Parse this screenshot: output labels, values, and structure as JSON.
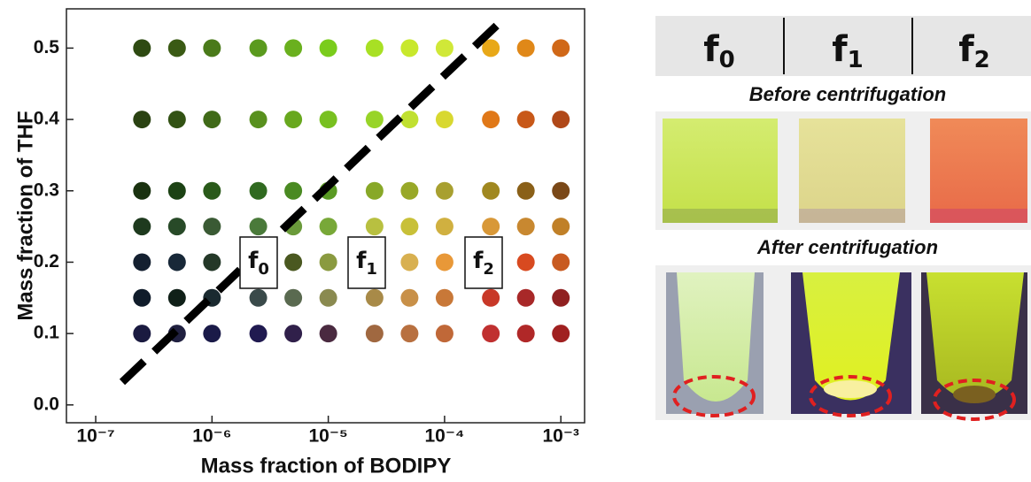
{
  "chart_data": {
    "type": "scatter",
    "xlabel": "Mass fraction of BODIPY",
    "ylabel": "Mass fraction of THF",
    "xscale": "log",
    "xlim": [
      5.6e-08,
      0.0016
    ],
    "ylim": [
      -0.025,
      0.555
    ],
    "xticks": [
      {
        "value": 1e-07,
        "label": "10⁻⁷"
      },
      {
        "value": 1e-06,
        "label": "10⁻⁶"
      },
      {
        "value": 1e-05,
        "label": "10⁻⁵"
      },
      {
        "value": 0.0001,
        "label": "10⁻⁴"
      },
      {
        "value": 0.001,
        "label": "10⁻³"
      }
    ],
    "yticks": [
      {
        "value": 0,
        "label": "0.0"
      },
      0.1,
      0.2,
      0.3,
      0.4,
      0.5
    ],
    "x": [
      2.5e-07,
      5e-07,
      1e-06,
      2.5e-06,
      5e-06,
      1e-05,
      2.5e-05,
      5e-05,
      0.0001,
      0.00025,
      0.0005,
      0.001
    ],
    "series": [
      {
        "y": 0.5,
        "colors": [
          "#2e4a12",
          "#3a5a14",
          "#4a7a1a",
          "#5a9a1e",
          "#6ab01e",
          "#7acc1c",
          "#a8e024",
          "#c8e82c",
          "#d0e838",
          "#e8a818",
          "#e08818",
          "#d06818"
        ]
      },
      {
        "y": 0.4,
        "colors": [
          "#2a4212",
          "#325214",
          "#406a18",
          "#58901e",
          "#68a81e",
          "#78c020",
          "#98d428",
          "#c0e030",
          "#d8d830",
          "#e07818",
          "#c85818",
          "#b04818"
        ]
      },
      {
        "y": 0.3,
        "colors": [
          "#1a3210",
          "#1c4214",
          "#2a5a1a",
          "#306a20",
          "#4a8a22",
          "#5a9a24",
          "#88a828",
          "#98a828",
          "#a8a030",
          "#a08820",
          "#8a6018",
          "#7a4818"
        ]
      },
      {
        "y": 0.25,
        "colors": [
          "#1e3a1e",
          "#284a28",
          "#3a5a34",
          "#4a7a3a",
          "#6a9a3a",
          "#78a838",
          "#b8c040",
          "#c8c038",
          "#d0b040",
          "#d89838",
          "#c88830",
          "#c08028"
        ]
      },
      {
        "y": 0.2,
        "colors": [
          "#142030",
          "#182838",
          "#243828",
          "#3a4a28",
          "#4a5820",
          "#8a9a40",
          "#b8b040",
          "#d8b050",
          "#e89838",
          "#e07838",
          "#d84a20",
          "#c85a20"
        ]
      },
      {
        "y": 0.15,
        "colors": [
          "#101c2a",
          "#102018",
          "#1a2a30",
          "#3a4a4a",
          "#5a6a50",
          "#8a8a50",
          "#a88a48",
          "#c89048",
          "#c87838",
          "#c83828",
          "#a82828",
          "#902020"
        ]
      },
      {
        "y": 0.1,
        "colors": [
          "#1a1a40",
          "#202040",
          "#1a1a48",
          "#201a50",
          "#30204a",
          "#4a2a40",
          "#a06840",
          "#b87040",
          "#c06838",
          "#c03030",
          "#b02828",
          "#a02020"
        ]
      }
    ],
    "annotations": [
      {
        "text": "f",
        "sub": "0"
      },
      {
        "text": "f",
        "sub": "1"
      },
      {
        "text": "f",
        "sub": "2"
      }
    ]
  },
  "photo_panel": {
    "headers": [
      {
        "text": "f",
        "sub": "0"
      },
      {
        "text": "f",
        "sub": "1"
      },
      {
        "text": "f",
        "sub": "2"
      }
    ],
    "before": "Before centrifugation",
    "after": "After centrifugation"
  }
}
